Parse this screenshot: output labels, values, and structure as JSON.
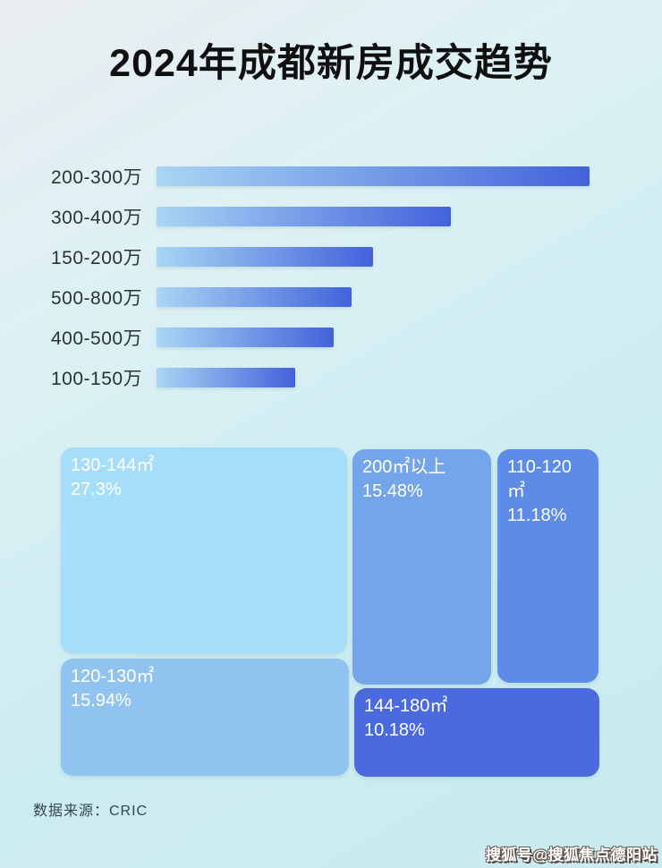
{
  "page": {
    "title": "2024年成都新房成交趋势",
    "source_note": "数据来源：CRIC",
    "watermark": "搜狐号@搜狐焦点德阳站"
  },
  "colors": {
    "background_top": "#e9edf0",
    "background_bottom": "#c9ebf0",
    "title_text": "#101010",
    "bar_label_text": "#2b3238",
    "bar_gradient_start": "#a9d6f4",
    "bar_gradient_end": "#4262db",
    "treemap_text": "#ffffff",
    "source_text": "#35454e"
  },
  "chart_data": [
    {
      "type": "bar",
      "orientation": "horizontal",
      "categories": [
        "200-300万",
        "300-400万",
        "150-200万",
        "500-800万",
        "400-500万",
        "100-150万"
      ],
      "values": [
        100,
        68,
        50,
        45,
        41,
        32
      ],
      "value_note": "relative bar length as % of longest bar; no numeric data labels are shown in the image",
      "bar_gradient": [
        "#a9d6f4",
        "#4262db"
      ],
      "grid": false,
      "legend": false
    },
    {
      "type": "treemap",
      "value_unit": "%",
      "items": [
        {
          "label": "130-144㎡",
          "percent_label": "27.3%",
          "value": 27.3,
          "color": "#a6defa"
        },
        {
          "label": "120-130㎡",
          "percent_label": "15.94%",
          "value": 15.94,
          "color": "#90c3f0"
        },
        {
          "label": "200㎡以上",
          "percent_label": "15.48%",
          "value": 15.48,
          "color": "#74a5ea"
        },
        {
          "label": "110-120㎡",
          "percent_label": "11.18%",
          "value": 11.18,
          "color": "#5d8ce6"
        },
        {
          "label": "144-180㎡",
          "percent_label": "10.18%",
          "value": 10.18,
          "color": "#4a6ade"
        }
      ]
    }
  ]
}
